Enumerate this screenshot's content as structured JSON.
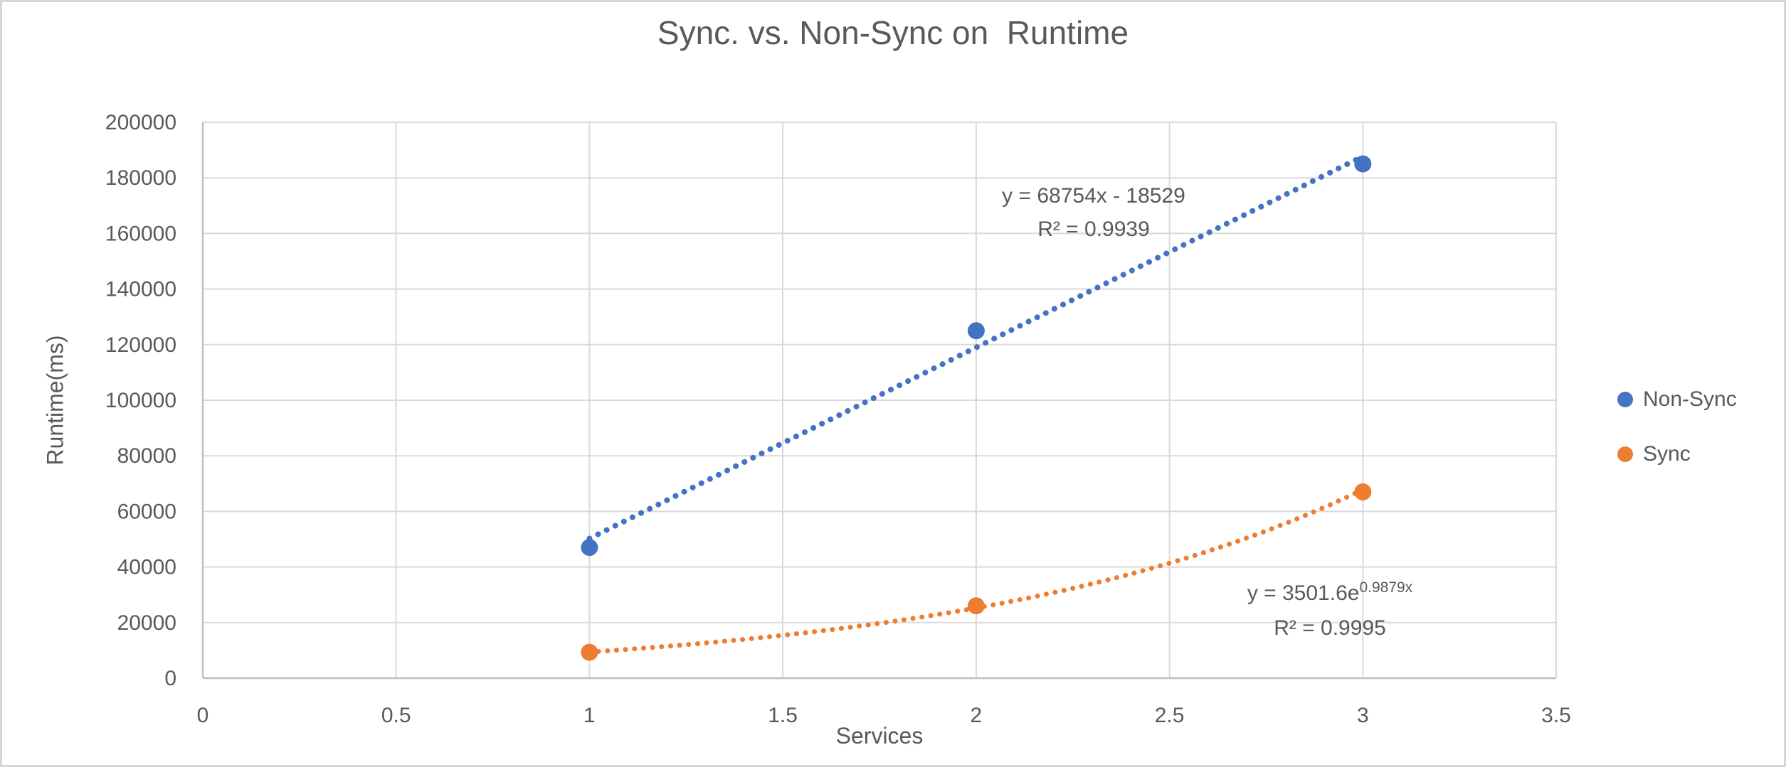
{
  "window": {
    "background": "#ffffff",
    "border_color": "#d6d6d6"
  },
  "chart_data": {
    "type": "scatter",
    "title": "Sync. vs. Non-Sync on  Runtime",
    "xlabel": "Services",
    "ylabel": "Runtime(ms)",
    "grid": true,
    "legend_position": "right",
    "x_axis": {
      "min": 0,
      "max": 3.5,
      "ticks": [
        0,
        0.5,
        1,
        1.5,
        2,
        2.5,
        3,
        3.5
      ]
    },
    "y_axis": {
      "min": 0,
      "max": 200000,
      "ticks": [
        0,
        20000,
        40000,
        60000,
        80000,
        100000,
        120000,
        140000,
        160000,
        180000,
        200000
      ]
    },
    "colors": {
      "text": "#595959",
      "gridline": "#d9d9d9",
      "axis_line": "#bfbfbf"
    },
    "series": [
      {
        "name": "Non-Sync",
        "color": "#4472c4",
        "points": [
          {
            "x": 1,
            "y": 47000
          },
          {
            "x": 2,
            "y": 125000
          },
          {
            "x": 3,
            "y": 185000
          }
        ],
        "trendline": {
          "kind": "linear",
          "slope": 68754,
          "intercept": -18529,
          "x_start": 1,
          "x_end": 3,
          "style": "dotted"
        },
        "equation": "y = 68754x - 18529",
        "r_squared": "R² = 0.9939"
      },
      {
        "name": "Sync",
        "color": "#ed7d31",
        "points": [
          {
            "x": 1,
            "y": 9300
          },
          {
            "x": 2,
            "y": 26000
          },
          {
            "x": 3,
            "y": 67000
          }
        ],
        "trendline": {
          "kind": "exponential",
          "coefficient": 3501.6,
          "rate": 0.9879,
          "x_start": 1,
          "x_end": 3,
          "style": "dotted"
        },
        "equation_base": "y = 3501.6e",
        "equation_exponent": "0.9879x",
        "r_squared": "R² = 0.9995"
      }
    ]
  }
}
